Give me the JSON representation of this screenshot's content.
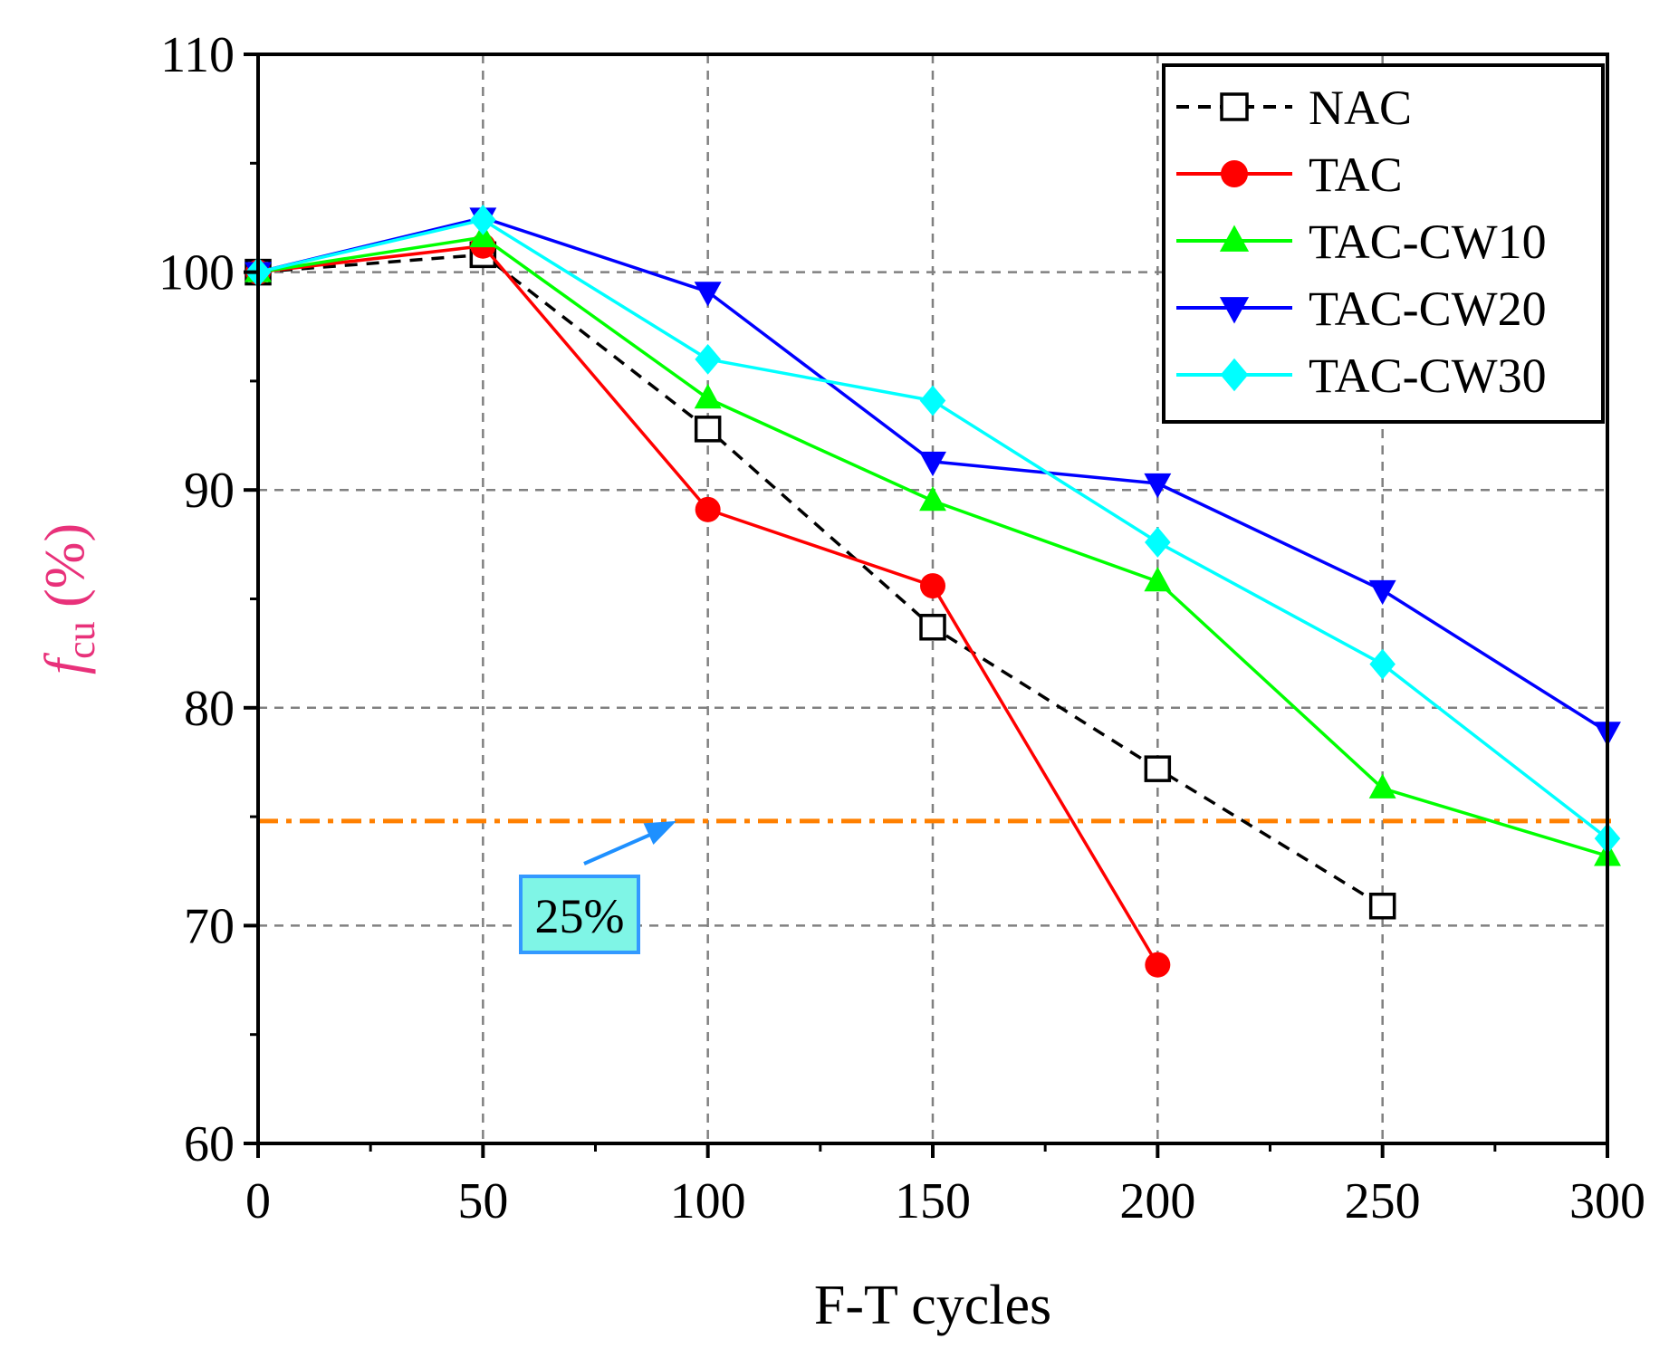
{
  "chart_data": {
    "type": "line",
    "title": "",
    "xlabel": "F-T cycles",
    "ylabel": {
      "main": "f",
      "sub": "cu",
      "unit": " (%)"
    },
    "xlim": [
      0,
      300
    ],
    "ylim": [
      60,
      110
    ],
    "xticks": [
      0,
      50,
      100,
      150,
      200,
      250,
      300
    ],
    "yticks": [
      60,
      70,
      80,
      90,
      100,
      110
    ],
    "grid": true,
    "legend_position": "top-right",
    "series": [
      {
        "name": "NAC",
        "color": "#000000",
        "marker": "square-open",
        "dash": true,
        "x": [
          0,
          50,
          100,
          150,
          200,
          250
        ],
        "values": [
          100,
          100.8,
          92.8,
          83.7,
          77.2,
          70.9
        ]
      },
      {
        "name": "TAC",
        "color": "#ff0000",
        "marker": "circle",
        "x": [
          0,
          50,
          100,
          150,
          200
        ],
        "values": [
          100,
          101.2,
          89.1,
          85.6,
          68.2
        ]
      },
      {
        "name": "TAC-CW10",
        "color": "#00ff00",
        "marker": "triangle-up",
        "x": [
          0,
          50,
          100,
          150,
          200,
          250,
          300
        ],
        "values": [
          100,
          101.6,
          94.2,
          89.5,
          85.8,
          76.3,
          73.2
        ]
      },
      {
        "name": "TAC-CW20",
        "color": "#0000ff",
        "marker": "triangle-down",
        "x": [
          0,
          50,
          100,
          150,
          200,
          250,
          300
        ],
        "values": [
          100,
          102.5,
          99.1,
          91.3,
          90.3,
          85.4,
          78.9
        ]
      },
      {
        "name": "TAC-CW30",
        "color": "#00ffff",
        "marker": "diamond",
        "x": [
          0,
          50,
          100,
          150,
          200,
          250,
          300
        ],
        "values": [
          100,
          102.4,
          96.0,
          94.1,
          87.6,
          82.0,
          74.0
        ]
      }
    ],
    "reference_line": {
      "y": 74.8,
      "color": "#ff8000",
      "style": "dash-dot"
    },
    "annotation": {
      "text": "25%",
      "box_color": "#7ff5e6",
      "border_color": "#3399ff",
      "arrow_color": "#1e90ff",
      "arrow_target": [
        93,
        74.8
      ]
    }
  }
}
